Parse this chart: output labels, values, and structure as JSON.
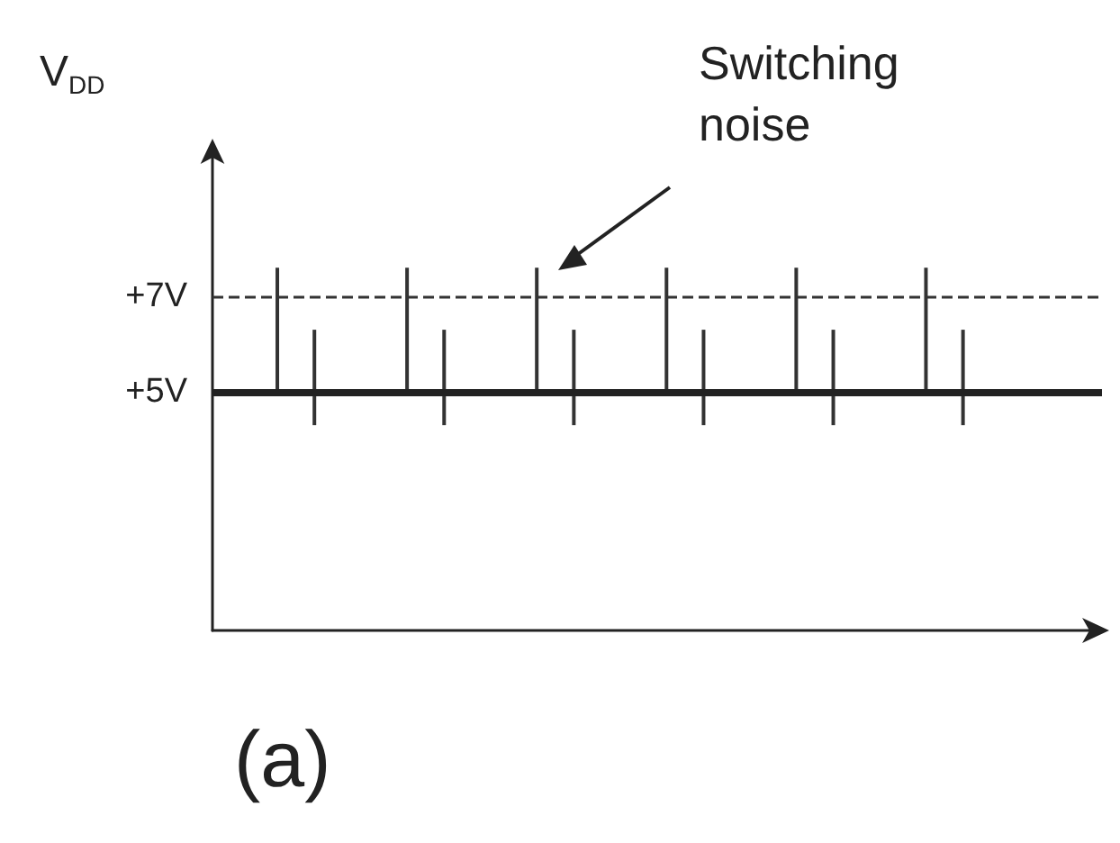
{
  "chart_data": {
    "type": "bar",
    "ylabel": "V$_{DD}$",
    "annotations": [
      "Switching noise",
      "(a)"
    ],
    "categories": [
      null,
      null,
      null,
      null,
      null,
      null,
      null,
      null,
      null,
      null,
      null,
      null,
      null,
      null,
      null,
      null,
      null,
      null,
      null,
      null,
      null,
      null,
      null,
      null,
      null,
      null,
      null,
      null,
      null,
      null,
      null,
      null,
      null,
      null,
      null,
      null,
      null,
      null,
      null,
      null,
      null,
      null,
      null,
      null,
      null,
      null,
      null,
      null
    ],
    "values": [
      null,
      null,
      null,
      2.6,
      null,
      2.0,
      null,
      null,
      null,
      null,
      2.6,
      null,
      2.0,
      null,
      null,
      null,
      null,
      2.6,
      null,
      2.0,
      null,
      null,
      null,
      null,
      2.6,
      null,
      2.0,
      null,
      null,
      null,
      null,
      2.6,
      null,
      2.0,
      null,
      null,
      null,
      null,
      2.6,
      null,
      2.0,
      null,
      null,
      null,
      null,
      null,
      null,
      null
    ],
    "base": [
      null,
      null,
      null,
      5,
      null,
      4.3,
      null,
      null,
      null,
      null,
      5,
      null,
      4.3,
      null,
      null,
      null,
      null,
      5,
      null,
      4.3,
      null,
      null,
      null,
      null,
      5,
      null,
      4.3,
      null,
      null,
      null,
      null,
      5,
      null,
      4.3,
      null,
      null,
      null,
      null,
      5,
      null,
      4.3,
      null,
      null,
      null,
      null,
      null,
      null,
      null
    ],
    "color": "#333333",
    "ylim": [
      0,
      10
    ],
    "yticks": [
      {
        "value": 7,
        "label": "+7V"
      },
      {
        "value": 5,
        "label": "+5V"
      }
    ],
    "ref_lines": [
      {
        "axis": "y",
        "value": 7,
        "label": null,
        "color": "#333333",
        "line_style": "dashed"
      },
      {
        "axis": "y",
        "value": 5,
        "label": null,
        "color": "#222222",
        "line_style": "solid"
      }
    ],
    "tick_labels": "y",
    "grid": false
  }
}
